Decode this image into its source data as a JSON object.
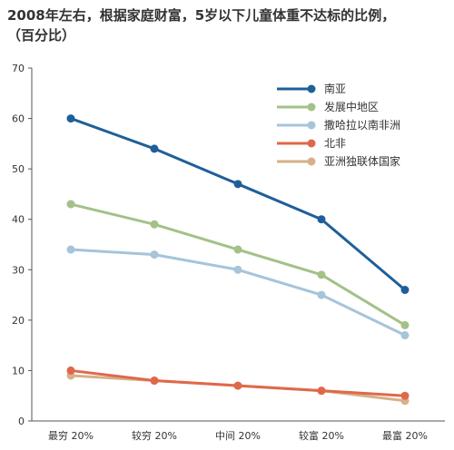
{
  "chart_data": {
    "type": "line",
    "title_line1": "2008年左右，根据家庭财富，5岁以下儿童体重不达标的比例，",
    "title_line2": "（百分比）",
    "categories": [
      "最穷 20%",
      "较穷 20%",
      "中间 20%",
      "较富 20%",
      "最富 20%"
    ],
    "ylim": [
      0,
      70
    ],
    "yticks": [
      0,
      10,
      20,
      30,
      40,
      50,
      60,
      70
    ],
    "grid": false,
    "legend_position": "top-right",
    "series": [
      {
        "name": "南亚",
        "color": "#1f5f99",
        "values": [
          60,
          54,
          47,
          40,
          26
        ]
      },
      {
        "name": "发展中地区",
        "color": "#a3c189",
        "values": [
          43,
          39,
          34,
          29,
          19
        ]
      },
      {
        "name": "撒哈拉以南非洲",
        "color": "#a6c4da",
        "values": [
          34,
          33,
          30,
          25,
          17
        ]
      },
      {
        "name": "北非",
        "color": "#e0684a",
        "values": [
          10,
          8,
          7,
          6,
          5
        ]
      },
      {
        "name": "亚洲独联体国家",
        "color": "#d7b088",
        "values": [
          9,
          8,
          7,
          6,
          4
        ]
      }
    ]
  }
}
